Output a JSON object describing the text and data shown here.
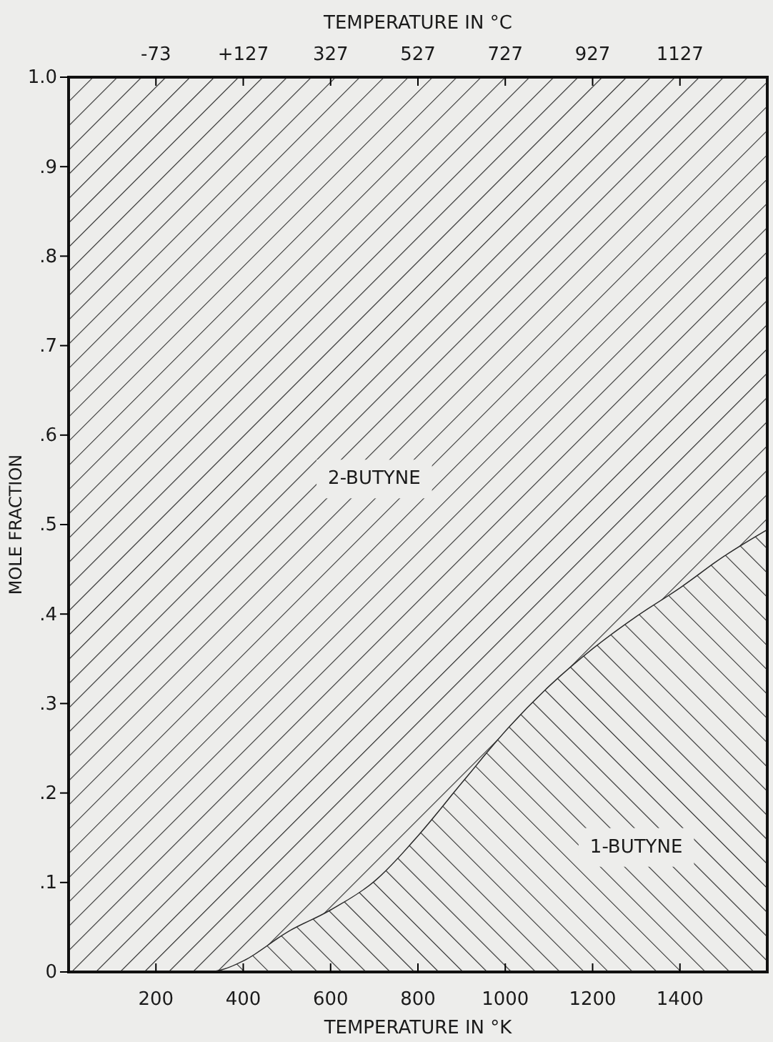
{
  "chart_data": {
    "type": "area",
    "stacked": true,
    "xlabel": "TEMPERATURE IN °K",
    "x2label": "TEMPERATURE IN °C",
    "ylabel": "MOLE FRACTION",
    "x": [
      0,
      100,
      200,
      300,
      350,
      400,
      500,
      600,
      700,
      800,
      900,
      1000,
      1100,
      1200,
      1300,
      1400,
      1500,
      1600
    ],
    "series": [
      {
        "name": "1-BUTYNE",
        "color": "#2a2a2a",
        "values": [
          0,
          0,
          0,
          0,
          0.003,
          0.013,
          0.045,
          0.07,
          0.102,
          0.153,
          0.212,
          0.27,
          0.32,
          0.362,
          0.398,
          0.43,
          0.465,
          0.495
        ]
      },
      {
        "name": "2-BUTYNE",
        "color": "#2a2a2a",
        "values": [
          1,
          1,
          1,
          1,
          0.997,
          0.987,
          0.955,
          0.93,
          0.898,
          0.847,
          0.788,
          0.73,
          0.68,
          0.638,
          0.602,
          0.57,
          0.535,
          0.505
        ]
      }
    ],
    "xlim": [
      0,
      1600
    ],
    "xticks": [
      200,
      400,
      600,
      800,
      1000,
      1200,
      1400
    ],
    "x2lim": [
      -273,
      1327
    ],
    "x2ticks": [
      -73,
      {
        "value": 127,
        "label": "+127"
      },
      327,
      527,
      727,
      927,
      1127
    ],
    "ylim": [
      0,
      1
    ],
    "yticks": [
      {
        "value": 0,
        "label": "0"
      },
      {
        "value": 0.1,
        "label": ".1"
      },
      {
        "value": 0.2,
        "label": ".2"
      },
      {
        "value": 0.3,
        "label": ".3"
      },
      {
        "value": 0.4,
        "label": ".4"
      },
      {
        "value": 0.5,
        "label": ".5"
      },
      {
        "value": 0.6,
        "label": ".6"
      },
      {
        "value": 0.7,
        "label": ".7"
      },
      {
        "value": 0.8,
        "label": ".8"
      },
      {
        "value": 0.9,
        "label": ".9"
      },
      {
        "value": 1,
        "label": "1.0"
      }
    ],
    "grid": false
  }
}
